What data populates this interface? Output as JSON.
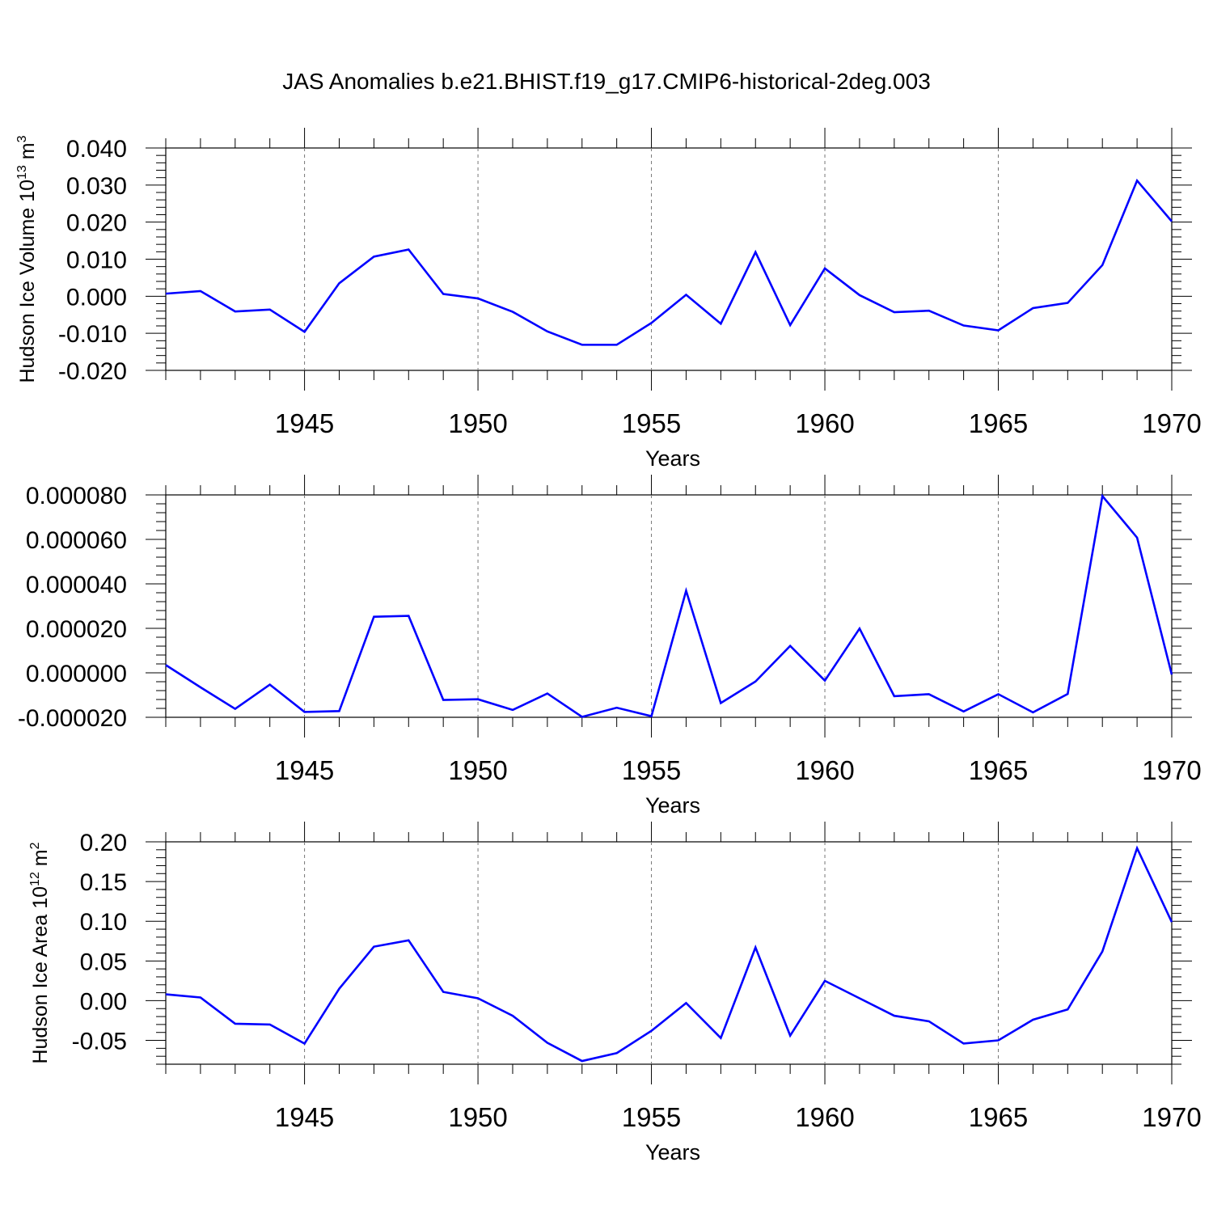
{
  "title": "JAS Anomalies b.e21.BHIST.f19_g17.CMIP6-historical-2deg.003",
  "line_color": "#0000ff",
  "chart_data": [
    {
      "type": "line",
      "title": "",
      "xlabel": "Years",
      "ylabel": "Hudson Ice Volume 10",
      "ylabel_sup": "13",
      "ylabel_unit": " m",
      "ylabel_unit_sup": "3",
      "xlim": [
        1941,
        1970
      ],
      "ylim": [
        -0.02,
        0.04
      ],
      "xticks": [
        "1945",
        "1950",
        "1955",
        "1960",
        "1965",
        "1970"
      ],
      "yticks": [
        "0.040",
        "0.030",
        "0.020",
        "0.010",
        "0.000",
        "-0.010",
        "-0.020"
      ],
      "grid": "vertical dashed at major x ticks",
      "series": [
        {
          "x": [
            1941,
            1942,
            1943,
            1944,
            1945,
            1946,
            1947,
            1948,
            1949,
            1950,
            1951,
            1952,
            1953,
            1954,
            1955,
            1956,
            1957,
            1958,
            1959,
            1960,
            1961,
            1962,
            1963,
            1964,
            1965,
            1966,
            1967,
            1968,
            1969,
            1970
          ],
          "values": [
            0.0007,
            0.0014,
            -0.0041,
            -0.0036,
            -0.0096,
            0.0035,
            0.0107,
            0.0126,
            0.0006,
            -0.0006,
            -0.0042,
            -0.0095,
            -0.0131,
            -0.0131,
            -0.0072,
            0.0004,
            -0.0074,
            0.0119,
            -0.0078,
            0.0075,
            0.0003,
            -0.0043,
            -0.0039,
            -0.0079,
            -0.0092,
            -0.0032,
            -0.0018,
            0.0084,
            0.0312,
            0.0202
          ]
        }
      ]
    },
    {
      "type": "line",
      "title": "",
      "xlabel": "Years",
      "ylabel": "",
      "xlim": [
        1941,
        1970
      ],
      "ylim": [
        -2e-05,
        8e-05
      ],
      "xticks": [
        "1945",
        "1950",
        "1955",
        "1960",
        "1965",
        "1970"
      ],
      "yticks": [
        "0.000080",
        "0.000060",
        "0.000040",
        "0.000020",
        "0.000000",
        "-0.000020"
      ],
      "grid": "vertical dashed at major x ticks",
      "series": [
        {
          "x": [
            1941,
            1942,
            1943,
            1944,
            1945,
            1946,
            1947,
            1948,
            1949,
            1950,
            1951,
            1952,
            1953,
            1954,
            1955,
            1956,
            1957,
            1958,
            1959,
            1960,
            1961,
            1962,
            1963,
            1964,
            1965,
            1966,
            1967,
            1968,
            1969,
            1970
          ],
          "values": [
            3.5e-06,
            -6.5e-06,
            -1.62e-05,
            -5.3e-06,
            -1.76e-05,
            -1.72e-05,
            2.52e-05,
            2.56e-05,
            -1.22e-05,
            -1.19e-05,
            -1.67e-05,
            -9.3e-06,
            -1.98e-05,
            -1.57e-05,
            -1.95e-05,
            3.69e-05,
            -1.36e-05,
            -3.9e-06,
            1.21e-05,
            -3.5e-06,
            1.99e-05,
            -1.05e-05,
            -9.6e-06,
            -1.74e-05,
            -9.6e-06,
            -1.78e-05,
            -9.5e-06,
            7.95e-05,
            6.08e-05,
            -8e-07
          ]
        }
      ]
    },
    {
      "type": "line",
      "title": "",
      "xlabel": "Years",
      "ylabel": "Hudson Ice Area 10",
      "ylabel_sup": "12",
      "ylabel_unit": " m",
      "ylabel_unit_sup": "2",
      "xlim": [
        1941,
        1970
      ],
      "ylim": [
        -0.08,
        0.2
      ],
      "xticks": [
        "1945",
        "1950",
        "1955",
        "1960",
        "1965",
        "1970"
      ],
      "yticks": [
        "0.20",
        "0.15",
        "0.10",
        "0.05",
        "0.00",
        "-0.05"
      ],
      "grid": "vertical dashed at major x ticks",
      "series": [
        {
          "x": [
            1941,
            1942,
            1943,
            1944,
            1945,
            1946,
            1947,
            1948,
            1949,
            1950,
            1951,
            1952,
            1953,
            1954,
            1955,
            1956,
            1957,
            1958,
            1959,
            1960,
            1961,
            1962,
            1963,
            1964,
            1965,
            1966,
            1967,
            1968,
            1969,
            1970
          ],
          "values": [
            0.008,
            0.004,
            -0.029,
            -0.03,
            -0.054,
            0.015,
            0.068,
            0.076,
            0.011,
            0.003,
            -0.019,
            -0.053,
            -0.076,
            -0.066,
            -0.038,
            -0.003,
            -0.047,
            0.067,
            -0.044,
            0.025,
            0.003,
            -0.019,
            -0.026,
            -0.054,
            -0.05,
            -0.024,
            -0.011,
            0.062,
            0.192,
            0.099
          ]
        }
      ]
    }
  ]
}
